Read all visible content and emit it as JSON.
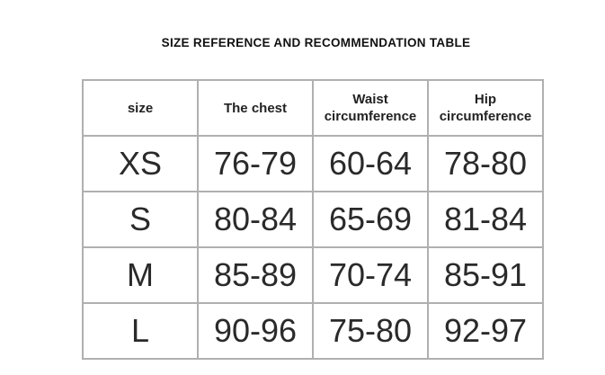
{
  "title": "SIZE REFERENCE AND RECOMMENDATION TABLE",
  "headers": [
    {
      "line1": "size",
      "line2": ""
    },
    {
      "line1": "The chest",
      "line2": ""
    },
    {
      "line1": "Waist",
      "line2": "circumference"
    },
    {
      "line1": "Hip",
      "line2": "circumference"
    }
  ],
  "rows": [
    [
      "XS",
      "76-79",
      "60-64",
      "78-80"
    ],
    [
      "S",
      "80-84",
      "65-69",
      "81-84"
    ],
    [
      "M",
      "85-89",
      "70-74",
      "85-91"
    ],
    [
      "L",
      "90-96",
      "75-80",
      "92-97"
    ]
  ]
}
